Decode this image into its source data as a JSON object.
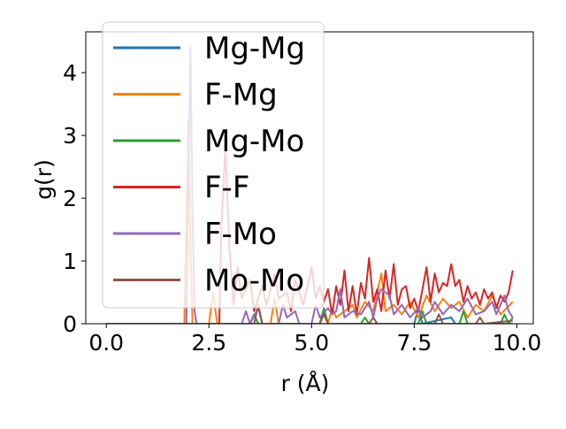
{
  "chart_data": {
    "type": "line",
    "title": "",
    "xlabel": "r (Å)",
    "ylabel": "g(r)",
    "xlim": [
      -0.5,
      10.4
    ],
    "ylim": [
      0,
      4.65
    ],
    "xticks": [
      0.0,
      2.5,
      5.0,
      7.5,
      10.0
    ],
    "xtick_labels": [
      "0.0",
      "2.5",
      "5.0",
      "7.5",
      "10.0"
    ],
    "yticks": [
      0,
      1,
      2,
      3,
      4
    ],
    "ytick_labels": [
      "0",
      "1",
      "2",
      "3",
      "4"
    ],
    "grid": false,
    "legend_position": "top-left",
    "series": [
      {
        "name": "Mg-Mg",
        "color": "#1f77b4",
        "points": [
          [
            0.0,
            0
          ],
          [
            3.5,
            0
          ],
          [
            3.6,
            0.15
          ],
          [
            3.7,
            0
          ],
          [
            5.2,
            0
          ],
          [
            5.3,
            0.2
          ],
          [
            5.4,
            0
          ],
          [
            7.5,
            0
          ],
          [
            7.6,
            0.25
          ],
          [
            7.7,
            0
          ],
          [
            8.4,
            0.1
          ],
          [
            8.5,
            0
          ],
          [
            9.9,
            0
          ]
        ]
      },
      {
        "name": "F-Mg",
        "color": "#ff7f0e",
        "points": [
          [
            0.0,
            0
          ],
          [
            1.9,
            0
          ],
          [
            1.95,
            1.6
          ],
          [
            2.0,
            3.25
          ],
          [
            2.05,
            1.2
          ],
          [
            2.1,
            0
          ],
          [
            2.5,
            0
          ],
          [
            2.6,
            0.5
          ],
          [
            2.7,
            0
          ],
          [
            4.0,
            0
          ],
          [
            4.1,
            0.4
          ],
          [
            4.2,
            0
          ],
          [
            5.4,
            0
          ],
          [
            5.5,
            0.25
          ],
          [
            5.6,
            0.1
          ],
          [
            5.8,
            0.2
          ],
          [
            6.0,
            0.3
          ],
          [
            6.1,
            0.1
          ],
          [
            6.3,
            0.35
          ],
          [
            6.5,
            0.2
          ],
          [
            6.7,
            0.8
          ],
          [
            6.8,
            0.2
          ],
          [
            7.0,
            0.3
          ],
          [
            7.2,
            0.15
          ],
          [
            7.4,
            0.35
          ],
          [
            7.6,
            0.1
          ],
          [
            7.8,
            0.45
          ],
          [
            8.0,
            0.2
          ],
          [
            8.2,
            0.4
          ],
          [
            8.4,
            0.25
          ],
          [
            8.6,
            0.35
          ],
          [
            8.8,
            0.1
          ],
          [
            9.0,
            0.3
          ],
          [
            9.2,
            0.2
          ],
          [
            9.4,
            0.45
          ],
          [
            9.6,
            0.15
          ],
          [
            9.9,
            0.35
          ]
        ]
      },
      {
        "name": "Mg-Mo",
        "color": "#2ca02c",
        "points": [
          [
            0.0,
            0
          ],
          [
            3.5,
            0
          ],
          [
            3.6,
            0.15
          ],
          [
            3.7,
            0
          ],
          [
            5.2,
            0
          ],
          [
            5.3,
            0.25
          ],
          [
            5.4,
            0
          ],
          [
            6.2,
            0
          ],
          [
            6.3,
            0.1
          ],
          [
            6.4,
            0
          ],
          [
            7.6,
            0
          ],
          [
            7.7,
            0.2
          ],
          [
            7.8,
            0
          ],
          [
            8.6,
            0
          ],
          [
            8.7,
            0.2
          ],
          [
            8.8,
            0
          ],
          [
            9.6,
            0
          ],
          [
            9.7,
            0.15
          ],
          [
            9.8,
            0
          ],
          [
            9.9,
            0.1
          ]
        ]
      },
      {
        "name": "F-F",
        "color": "#d62728",
        "points": [
          [
            0.0,
            0
          ],
          [
            2.75,
            0
          ],
          [
            2.8,
            1.5
          ],
          [
            2.9,
            2.8
          ],
          [
            3.0,
            1.2
          ],
          [
            3.1,
            0.3
          ],
          [
            3.2,
            0.9
          ],
          [
            3.3,
            0.4
          ],
          [
            3.5,
            0.7
          ],
          [
            3.6,
            0.2
          ],
          [
            3.8,
            0.6
          ],
          [
            3.9,
            0.3
          ],
          [
            4.1,
            0.8
          ],
          [
            4.2,
            0.4
          ],
          [
            4.4,
            0.5
          ],
          [
            4.5,
            0.2
          ],
          [
            4.6,
            0.7
          ],
          [
            4.8,
            0.3
          ],
          [
            5.0,
            0.9
          ],
          [
            5.1,
            0.4
          ],
          [
            5.2,
            0.6
          ],
          [
            5.3,
            0.35
          ],
          [
            5.4,
            0.55
          ],
          [
            5.5,
            0.15
          ],
          [
            5.6,
            0.6
          ],
          [
            5.7,
            0.3
          ],
          [
            5.8,
            0.85
          ],
          [
            5.9,
            0.2
          ],
          [
            6.0,
            0.6
          ],
          [
            6.1,
            0.15
          ],
          [
            6.2,
            0.65
          ],
          [
            6.3,
            0.4
          ],
          [
            6.4,
            1.05
          ],
          [
            6.5,
            0.35
          ],
          [
            6.6,
            0.55
          ],
          [
            6.7,
            0.2
          ],
          [
            6.8,
            0.85
          ],
          [
            6.9,
            0.4
          ],
          [
            7.0,
            0.95
          ],
          [
            7.1,
            0.3
          ],
          [
            7.2,
            0.55
          ],
          [
            7.3,
            0.6
          ],
          [
            7.4,
            0.25
          ],
          [
            7.5,
            0.4
          ],
          [
            7.6,
            0.2
          ],
          [
            7.7,
            0.55
          ],
          [
            7.8,
            0.9
          ],
          [
            7.9,
            0.35
          ],
          [
            8.0,
            0.8
          ],
          [
            8.1,
            0.5
          ],
          [
            8.2,
            0.65
          ],
          [
            8.3,
            0.6
          ],
          [
            8.4,
            0.95
          ],
          [
            8.5,
            0.6
          ],
          [
            8.6,
            0.7
          ],
          [
            8.7,
            0.35
          ],
          [
            8.8,
            0.6
          ],
          [
            8.9,
            0.4
          ],
          [
            9.0,
            0.5
          ],
          [
            9.1,
            0.3
          ],
          [
            9.2,
            0.55
          ],
          [
            9.3,
            0.4
          ],
          [
            9.4,
            0.5
          ],
          [
            9.5,
            0.25
          ],
          [
            9.6,
            0.45
          ],
          [
            9.7,
            0.35
          ],
          [
            9.8,
            0.5
          ],
          [
            9.9,
            0.85
          ]
        ]
      },
      {
        "name": "F-Mo",
        "color": "#9467bd",
        "points": [
          [
            0.0,
            0
          ],
          [
            1.95,
            0
          ],
          [
            2.0,
            2.3
          ],
          [
            2.05,
            4.4
          ],
          [
            2.1,
            1.8
          ],
          [
            2.15,
            0.2
          ],
          [
            2.2,
            0
          ],
          [
            3.3,
            0
          ],
          [
            3.4,
            0.2
          ],
          [
            3.5,
            0
          ],
          [
            3.7,
            0.25
          ],
          [
            3.8,
            0
          ],
          [
            4.2,
            0
          ],
          [
            4.3,
            0.3
          ],
          [
            4.4,
            0.1
          ],
          [
            4.6,
            0.2
          ],
          [
            4.7,
            0
          ],
          [
            5.0,
            0
          ],
          [
            5.1,
            0.3
          ],
          [
            5.2,
            0.1
          ],
          [
            5.4,
            0.25
          ],
          [
            5.5,
            0.15
          ],
          [
            5.6,
            0.2
          ],
          [
            5.7,
            0.55
          ],
          [
            5.8,
            0.1
          ],
          [
            6.0,
            0.2
          ],
          [
            6.2,
            0.15
          ],
          [
            6.4,
            0.35
          ],
          [
            6.5,
            0.1
          ],
          [
            6.6,
            0.4
          ],
          [
            6.7,
            0.55
          ],
          [
            6.8,
            0.5
          ],
          [
            6.9,
            0.45
          ],
          [
            7.0,
            0.15
          ],
          [
            7.2,
            0.3
          ],
          [
            7.4,
            0.1
          ],
          [
            7.6,
            0.25
          ],
          [
            7.7,
            0.1
          ],
          [
            7.9,
            0.2
          ],
          [
            8.0,
            0.35
          ],
          [
            8.2,
            0.15
          ],
          [
            8.4,
            0.3
          ],
          [
            8.6,
            0.2
          ],
          [
            8.8,
            0.4
          ],
          [
            9.0,
            0.15
          ],
          [
            9.2,
            0.2
          ],
          [
            9.4,
            0.35
          ],
          [
            9.5,
            0.15
          ],
          [
            9.7,
            0.45
          ],
          [
            9.8,
            0.2
          ],
          [
            9.9,
            0.1
          ]
        ]
      },
      {
        "name": "Mo-Mo",
        "color": "#8c564b",
        "points": [
          [
            0.0,
            0
          ],
          [
            3.6,
            0
          ],
          [
            3.7,
            0.3
          ],
          [
            3.8,
            0
          ],
          [
            5.2,
            0
          ],
          [
            5.3,
            0.15
          ],
          [
            5.4,
            0
          ],
          [
            6.4,
            0
          ],
          [
            6.5,
            0.1
          ],
          [
            6.6,
            0
          ],
          [
            8.0,
            0
          ],
          [
            8.1,
            0.15
          ],
          [
            8.2,
            0
          ],
          [
            9.0,
            0
          ],
          [
            9.1,
            0.1
          ],
          [
            9.2,
            0
          ],
          [
            9.9,
            0.05
          ]
        ]
      }
    ]
  }
}
